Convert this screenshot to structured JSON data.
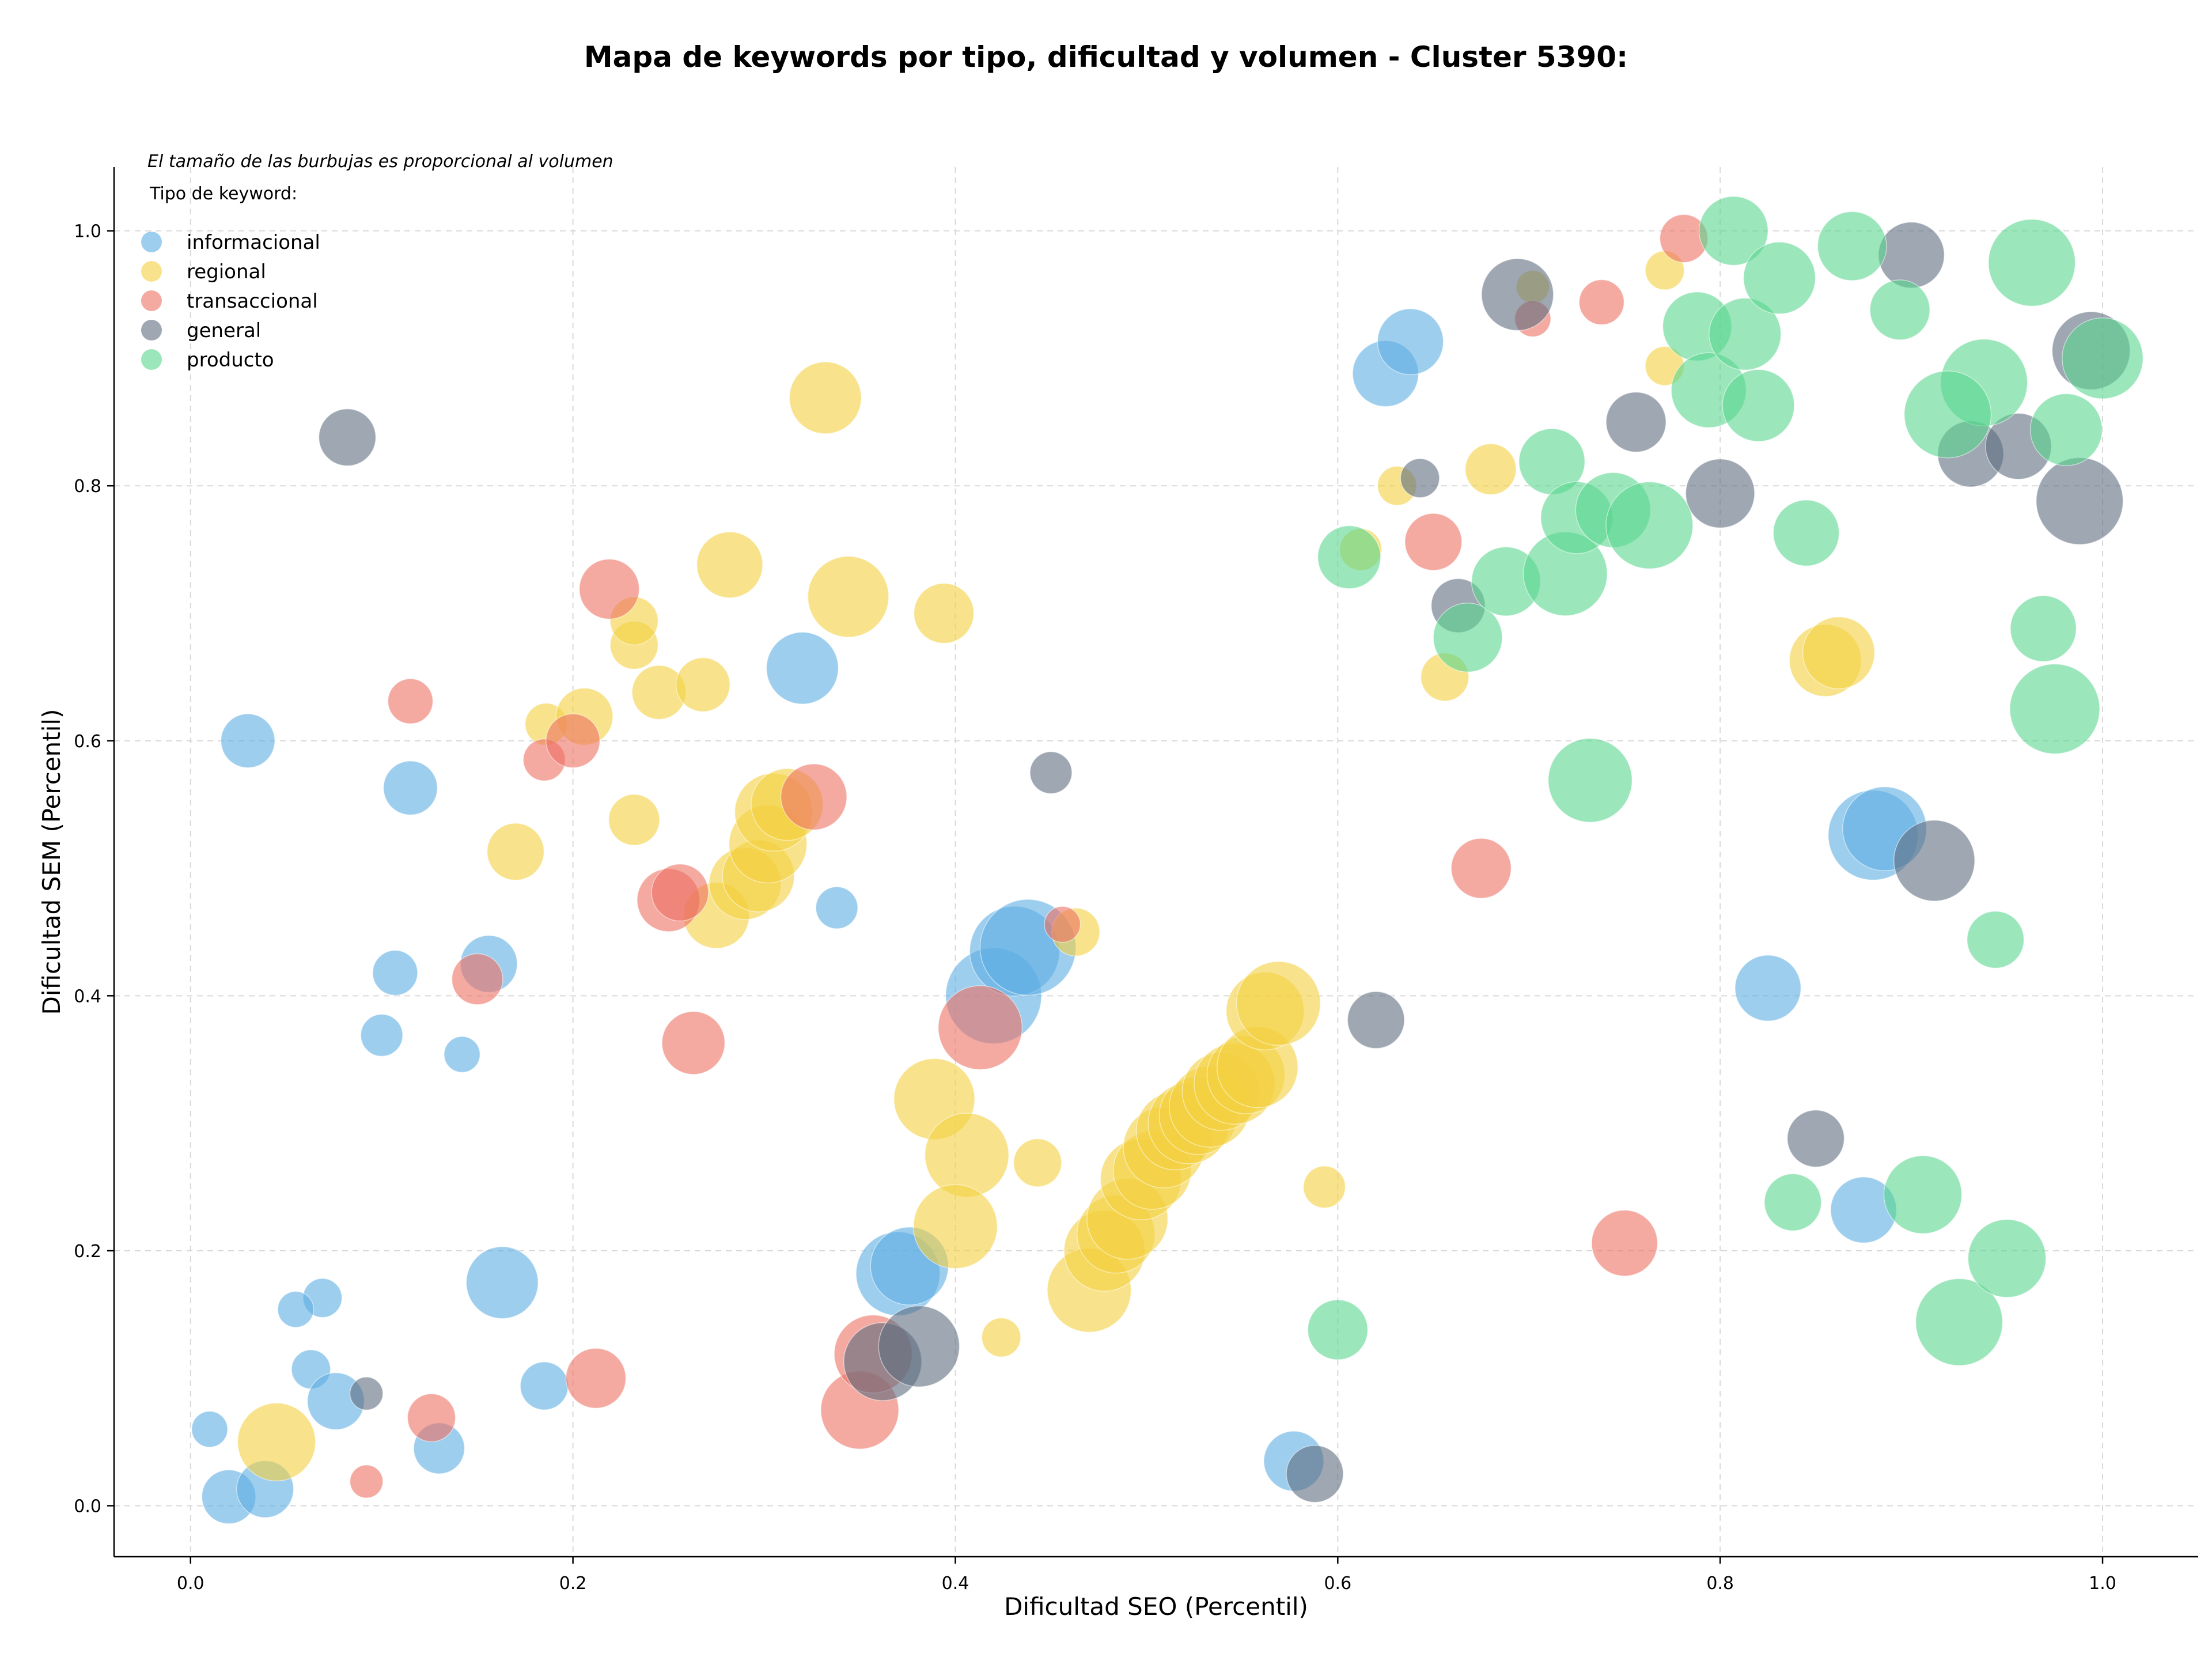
{
  "chart_data": {
    "type": "scatter",
    "title": "Mapa de keywords por tipo, dificultad y volumen - Cluster 5390:",
    "xlabel": "Dificultad SEO (Percentil)",
    "ylabel": "Dificultad SEM (Percentil)",
    "note": "El tamaño de las burbujas es proporcional al volumen",
    "legend_title": "Tipo de keyword:",
    "legend_position": "top-left",
    "xlim": [
      -0.04,
      1.05
    ],
    "ylim": [
      -0.04,
      1.05
    ],
    "grid": true,
    "x_ticks": [
      "0.0",
      "0.2",
      "0.4",
      "0.6",
      "0.8",
      "1.0"
    ],
    "y_ticks": [
      "0.0",
      "0.2",
      "0.4",
      "0.6",
      "0.8",
      "1.0"
    ],
    "series": [
      {
        "name": "informacional",
        "color": "#5DADE2",
        "points": [
          [
            0.03,
            0.6,
            0.9
          ],
          [
            0.115,
            0.563,
            0.9
          ],
          [
            0.107,
            0.418,
            0.75
          ],
          [
            0.156,
            0.425,
            0.95
          ],
          [
            0.1,
            0.369,
            0.7
          ],
          [
            0.142,
            0.354,
            0.6
          ],
          [
            0.163,
            0.175,
            1.2
          ],
          [
            0.069,
            0.163,
            0.65
          ],
          [
            0.055,
            0.154,
            0.6
          ],
          [
            0.063,
            0.107,
            0.65
          ],
          [
            0.076,
            0.082,
            0.95
          ],
          [
            0.01,
            0.06,
            0.6
          ],
          [
            0.02,
            0.007,
            0.9
          ],
          [
            0.039,
            0.013,
            0.95
          ],
          [
            0.13,
            0.045,
            0.85
          ],
          [
            0.185,
            0.094,
            0.8
          ],
          [
            0.32,
            0.657,
            1.2
          ],
          [
            0.338,
            0.469,
            0.7
          ],
          [
            0.42,
            0.4,
            1.6
          ],
          [
            0.431,
            0.435,
            1.5
          ],
          [
            0.438,
            0.438,
            1.6
          ],
          [
            0.37,
            0.182,
            1.4
          ],
          [
            0.376,
            0.188,
            1.3
          ],
          [
            0.577,
            0.035,
            1.0
          ],
          [
            0.625,
            0.888,
            1.1
          ],
          [
            0.638,
            0.913,
            1.1
          ],
          [
            0.825,
            0.406,
            1.1
          ],
          [
            0.875,
            0.232,
            1.1
          ],
          [
            0.88,
            0.526,
            1.5
          ],
          [
            0.886,
            0.531,
            1.4
          ]
        ]
      },
      {
        "name": "regional",
        "color": "#F4D03F",
        "points": [
          [
            0.045,
            0.05,
            1.3
          ],
          [
            0.17,
            0.513,
            0.95
          ],
          [
            0.186,
            0.613,
            0.7
          ],
          [
            0.206,
            0.619,
            0.95
          ],
          [
            0.232,
            0.538,
            0.85
          ],
          [
            0.232,
            0.675,
            0.8
          ],
          [
            0.232,
            0.694,
            0.8
          ],
          [
            0.245,
            0.638,
            0.9
          ],
          [
            0.268,
            0.644,
            0.9
          ],
          [
            0.282,
            0.738,
            1.1
          ],
          [
            0.275,
            0.463,
            1.1
          ],
          [
            0.29,
            0.488,
            1.2
          ],
          [
            0.297,
            0.494,
            1.2
          ],
          [
            0.302,
            0.519,
            1.3
          ],
          [
            0.305,
            0.544,
            1.3
          ],
          [
            0.312,
            0.55,
            1.2
          ],
          [
            0.332,
            0.869,
            1.2
          ],
          [
            0.344,
            0.713,
            1.35
          ],
          [
            0.394,
            0.7,
            1.0
          ],
          [
            0.389,
            0.319,
            1.35
          ],
          [
            0.406,
            0.275,
            1.4
          ],
          [
            0.4,
            0.219,
            1.4
          ],
          [
            0.424,
            0.132,
            0.65
          ],
          [
            0.443,
            0.269,
            0.8
          ],
          [
            0.463,
            0.45,
            0.8
          ],
          [
            0.47,
            0.169,
            1.4
          ],
          [
            0.478,
            0.2,
            1.35
          ],
          [
            0.484,
            0.213,
            1.3
          ],
          [
            0.49,
            0.225,
            1.35
          ],
          [
            0.497,
            0.256,
            1.35
          ],
          [
            0.503,
            0.263,
            1.3
          ],
          [
            0.509,
            0.281,
            1.35
          ],
          [
            0.515,
            0.294,
            1.3
          ],
          [
            0.522,
            0.3,
            1.35
          ],
          [
            0.527,
            0.306,
            1.3
          ],
          [
            0.533,
            0.313,
            1.35
          ],
          [
            0.539,
            0.325,
            1.3
          ],
          [
            0.546,
            0.331,
            1.35
          ],
          [
            0.552,
            0.338,
            1.3
          ],
          [
            0.558,
            0.344,
            1.35
          ],
          [
            0.562,
            0.388,
            1.3
          ],
          [
            0.569,
            0.394,
            1.4
          ],
          [
            0.593,
            0.25,
            0.7
          ],
          [
            0.612,
            0.75,
            0.7
          ],
          [
            0.631,
            0.8,
            0.65
          ],
          [
            0.656,
            0.65,
            0.8
          ],
          [
            0.68,
            0.813,
            0.85
          ],
          [
            0.702,
            0.956,
            0.55
          ],
          [
            0.771,
            0.969,
            0.65
          ],
          [
            0.771,
            0.894,
            0.65
          ],
          [
            0.855,
            0.663,
            1.2
          ],
          [
            0.862,
            0.669,
            1.2
          ]
        ]
      },
      {
        "name": "transaccional",
        "color": "#EC7063",
        "points": [
          [
            0.092,
            0.019,
            0.55
          ],
          [
            0.126,
            0.069,
            0.8
          ],
          [
            0.115,
            0.631,
            0.75
          ],
          [
            0.15,
            0.413,
            0.85
          ],
          [
            0.185,
            0.585,
            0.7
          ],
          [
            0.2,
            0.6,
            0.9
          ],
          [
            0.212,
            0.1,
            1.0
          ],
          [
            0.219,
            0.719,
            1.0
          ],
          [
            0.25,
            0.475,
            1.05
          ],
          [
            0.256,
            0.481,
            0.95
          ],
          [
            0.263,
            0.363,
            1.05
          ],
          [
            0.326,
            0.556,
            1.1
          ],
          [
            0.35,
            0.075,
            1.3
          ],
          [
            0.357,
            0.119,
            1.3
          ],
          [
            0.413,
            0.375,
            1.4
          ],
          [
            0.456,
            0.456,
            0.6
          ],
          [
            0.65,
            0.756,
            0.95
          ],
          [
            0.675,
            0.5,
            1.0
          ],
          [
            0.702,
            0.931,
            0.6
          ],
          [
            0.738,
            0.944,
            0.75
          ],
          [
            0.75,
            0.206,
            1.1
          ],
          [
            0.781,
            0.994,
            0.8
          ]
        ]
      },
      {
        "name": "general",
        "color": "#5D6D7E",
        "points": [
          [
            0.082,
            0.838,
            0.95
          ],
          [
            0.092,
            0.088,
            0.55
          ],
          [
            0.362,
            0.113,
            1.3
          ],
          [
            0.381,
            0.125,
            1.35
          ],
          [
            0.45,
            0.575,
            0.7
          ],
          [
            0.588,
            0.025,
            0.95
          ],
          [
            0.62,
            0.381,
            0.95
          ],
          [
            0.643,
            0.806,
            0.65
          ],
          [
            0.663,
            0.706,
            0.9
          ],
          [
            0.694,
            0.95,
            1.2
          ],
          [
            0.756,
            0.85,
            1.0
          ],
          [
            0.8,
            0.794,
            1.15
          ],
          [
            0.85,
            0.288,
            0.95
          ],
          [
            0.9,
            0.981,
            1.1
          ],
          [
            0.912,
            0.506,
            1.35
          ],
          [
            0.931,
            0.825,
            1.1
          ],
          [
            0.956,
            0.831,
            1.1
          ],
          [
            0.988,
            0.788,
            1.45
          ],
          [
            0.994,
            0.906,
            1.3
          ]
        ]
      },
      {
        "name": "producto",
        "color": "#58D68D",
        "points": [
          [
            0.6,
            0.138,
            1.0
          ],
          [
            0.606,
            0.744,
            1.05
          ],
          [
            0.668,
            0.681,
            1.15
          ],
          [
            0.688,
            0.725,
            1.15
          ],
          [
            0.712,
            0.819,
            1.1
          ],
          [
            0.719,
            0.731,
            1.4
          ],
          [
            0.725,
            0.775,
            1.2
          ],
          [
            0.732,
            0.569,
            1.4
          ],
          [
            0.744,
            0.781,
            1.25
          ],
          [
            0.763,
            0.769,
            1.45
          ],
          [
            0.788,
            0.925,
            1.15
          ],
          [
            0.794,
            0.875,
            1.25
          ],
          [
            0.807,
            1.0,
            1.15
          ],
          [
            0.813,
            0.919,
            1.2
          ],
          [
            0.82,
            0.863,
            1.2
          ],
          [
            0.831,
            0.963,
            1.2
          ],
          [
            0.838,
            0.238,
            0.95
          ],
          [
            0.845,
            0.763,
            1.1
          ],
          [
            0.869,
            0.988,
            1.15
          ],
          [
            0.894,
            0.938,
            1.0
          ],
          [
            0.906,
            0.244,
            1.3
          ],
          [
            0.925,
            0.144,
            1.45
          ],
          [
            0.944,
            0.444,
            0.95
          ],
          [
            0.95,
            0.194,
            1.3
          ],
          [
            0.963,
            0.975,
            1.45
          ],
          [
            0.969,
            0.688,
            1.1
          ],
          [
            0.975,
            0.625,
            1.5
          ],
          [
            0.981,
            0.844,
            1.2
          ],
          [
            0.938,
            0.881,
            1.45
          ],
          [
            0.919,
            0.856,
            1.45
          ],
          [
            1.0,
            0.9,
            1.35
          ]
        ]
      }
    ]
  }
}
